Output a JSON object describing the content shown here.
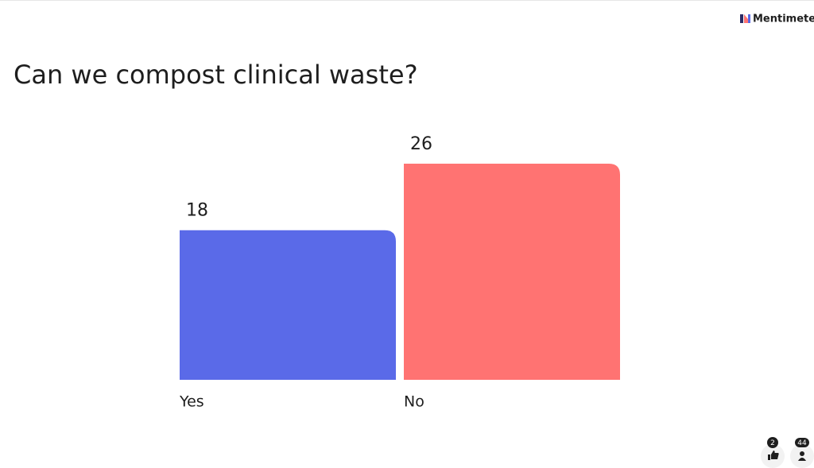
{
  "brand": "Mentimeter",
  "chart_data": {
    "type": "bar",
    "title": "Can we compost clinical waste?",
    "categories": [
      "Yes",
      "No"
    ],
    "values": [
      18,
      26
    ],
    "colors": [
      "#5a6ae8",
      "#ff7372"
    ]
  },
  "reactions": {
    "likes": 2,
    "participants": 44
  }
}
